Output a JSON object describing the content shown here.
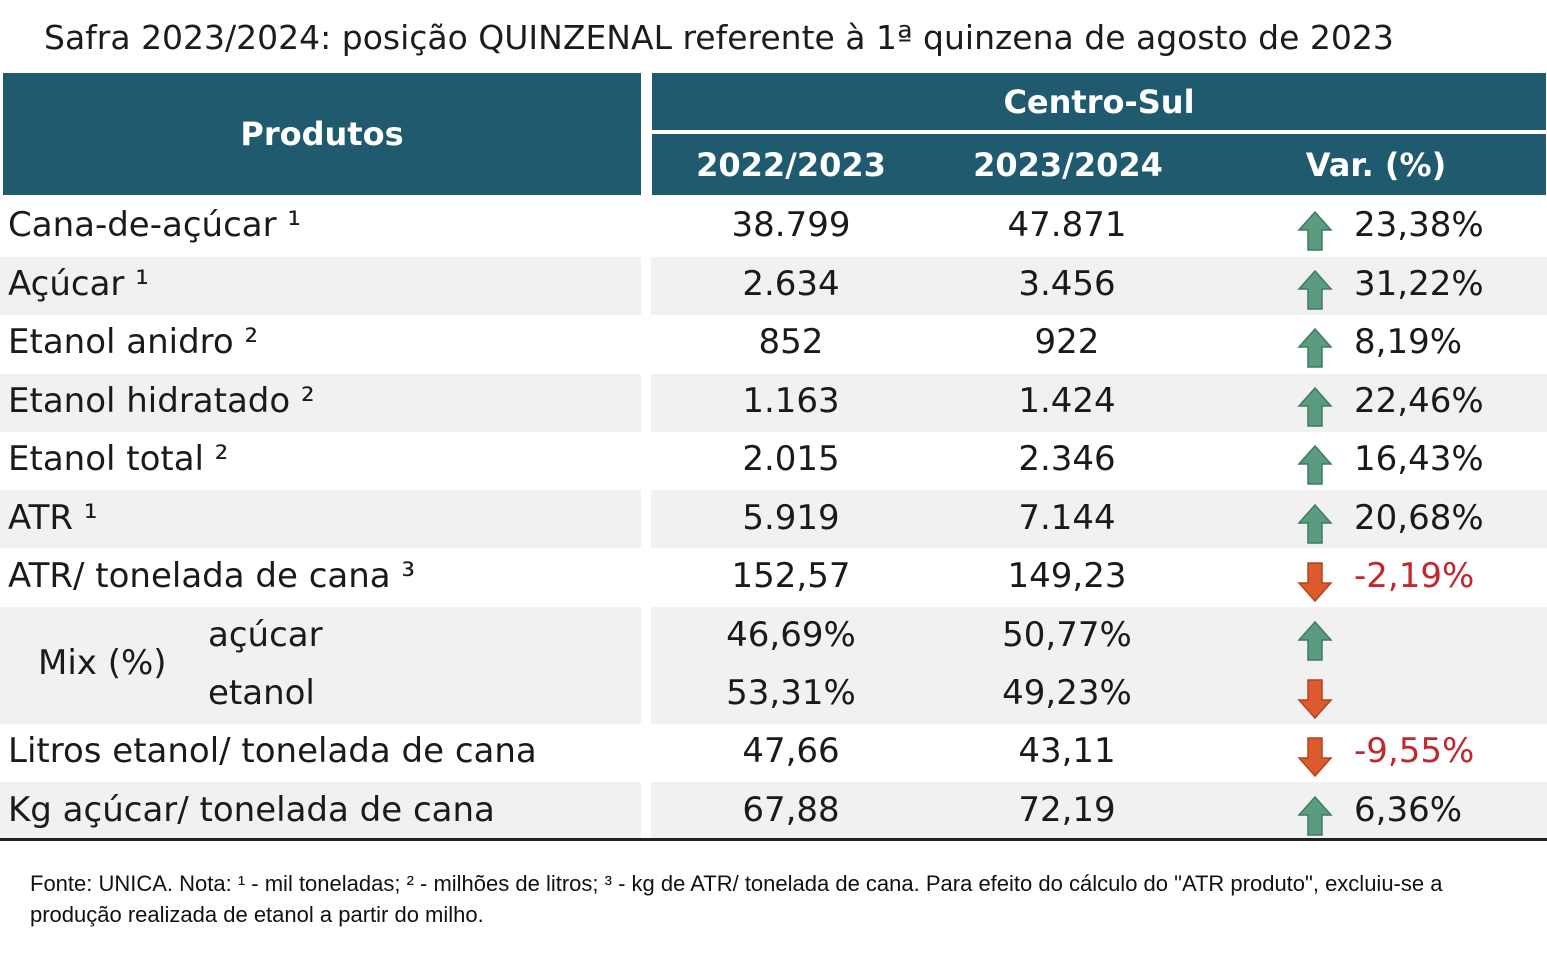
{
  "title": "Safra 2023/2024: posição QUINZENAL referente à 1ª quinzena de agosto de 2023",
  "header": {
    "produtos": "Produtos",
    "region": "Centro-Sul",
    "col1": "2022/2023",
    "col2": "2023/2024",
    "col3": "Var. (%)"
  },
  "rows": [
    {
      "label": "Cana-de-açúcar ¹",
      "v1": "38.799",
      "v2": "47.871",
      "var": "23,38%",
      "dir": "up"
    },
    {
      "label": "Açúcar ¹",
      "v1": "2.634",
      "v2": "3.456",
      "var": "31,22%",
      "dir": "up"
    },
    {
      "label": "Etanol anidro ²",
      "v1": "852",
      "v2": "922",
      "var": "8,19%",
      "dir": "up"
    },
    {
      "label": "Etanol hidratado ²",
      "v1": "1.163",
      "v2": "1.424",
      "var": "22,46%",
      "dir": "up"
    },
    {
      "label": "Etanol total ²",
      "v1": "2.015",
      "v2": "2.346",
      "var": "16,43%",
      "dir": "up"
    },
    {
      "label": "ATR ¹",
      "v1": "5.919",
      "v2": "7.144",
      "var": "20,68%",
      "dir": "up"
    },
    {
      "label": "ATR/ tonelada de cana ³",
      "v1": "152,57",
      "v2": "149,23",
      "var": "-2,19%",
      "dir": "down"
    }
  ],
  "mix": {
    "label": "Mix (%)",
    "acucar": {
      "label": "açúcar",
      "v1": "46,69%",
      "v2": "50,77%",
      "dir": "up"
    },
    "etanol": {
      "label": "etanol",
      "v1": "53,31%",
      "v2": "49,23%",
      "dir": "down"
    }
  },
  "rows2": [
    {
      "label": "Litros etanol/ tonelada de cana",
      "v1": "47,66",
      "v2": "43,11",
      "var": "-9,55%",
      "dir": "down"
    },
    {
      "label": "Kg açúcar/ tonelada de cana",
      "v1": "67,88",
      "v2": "72,19",
      "var": "6,36%",
      "dir": "up"
    }
  ],
  "note": "Fonte: UNICA. Nota: ¹ - mil toneladas; ² - milhões de litros; ³ - kg de ATR/ tonelada de cana. Para efeito do cálculo do \"ATR produto\", excluiu-se a produção realizada de etanol a partir do milho.",
  "colors": {
    "header": "#1f5a6e",
    "up_arrow": "#5b9c7f",
    "down_arrow": "#dd5a2e",
    "negative_text": "#c0282d"
  }
}
